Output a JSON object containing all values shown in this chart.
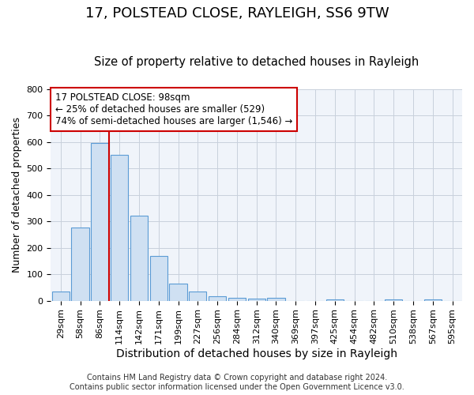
{
  "title": "17, POLSTEAD CLOSE, RAYLEIGH, SS6 9TW",
  "subtitle": "Size of property relative to detached houses in Rayleigh",
  "xlabel": "Distribution of detached houses by size in Rayleigh",
  "ylabel": "Number of detached properties",
  "categories": [
    "29sqm",
    "58sqm",
    "86sqm",
    "114sqm",
    "142sqm",
    "171sqm",
    "199sqm",
    "227sqm",
    "256sqm",
    "284sqm",
    "312sqm",
    "340sqm",
    "369sqm",
    "397sqm",
    "425sqm",
    "454sqm",
    "482sqm",
    "510sqm",
    "538sqm",
    "567sqm",
    "595sqm"
  ],
  "values": [
    35,
    278,
    597,
    552,
    322,
    168,
    65,
    35,
    18,
    10,
    7,
    10,
    0,
    0,
    5,
    0,
    0,
    5,
    0,
    5,
    0
  ],
  "bar_color": "#cfe0f2",
  "bar_edge_color": "#5b9bd5",
  "marker_bin_index": 2,
  "marker_color": "#cc0000",
  "annotation_box_color": "#cc0000",
  "annotation_text_line1": "17 POLSTEAD CLOSE: 98sqm",
  "annotation_text_line2": "← 25% of detached houses are smaller (529)",
  "annotation_text_line3": "74% of semi-detached houses are larger (1,546) →",
  "bg_color": "#ffffff",
  "plot_bg_color": "#f0f4fa",
  "grid_color": "#c8d0dc",
  "footer": "Contains HM Land Registry data © Crown copyright and database right 2024.\nContains public sector information licensed under the Open Government Licence v3.0.",
  "ylim": [
    0,
    800
  ],
  "title_fontsize": 13,
  "subtitle_fontsize": 10.5,
  "ylabel_fontsize": 9,
  "xlabel_fontsize": 10,
  "tick_fontsize": 8,
  "footer_fontsize": 7
}
